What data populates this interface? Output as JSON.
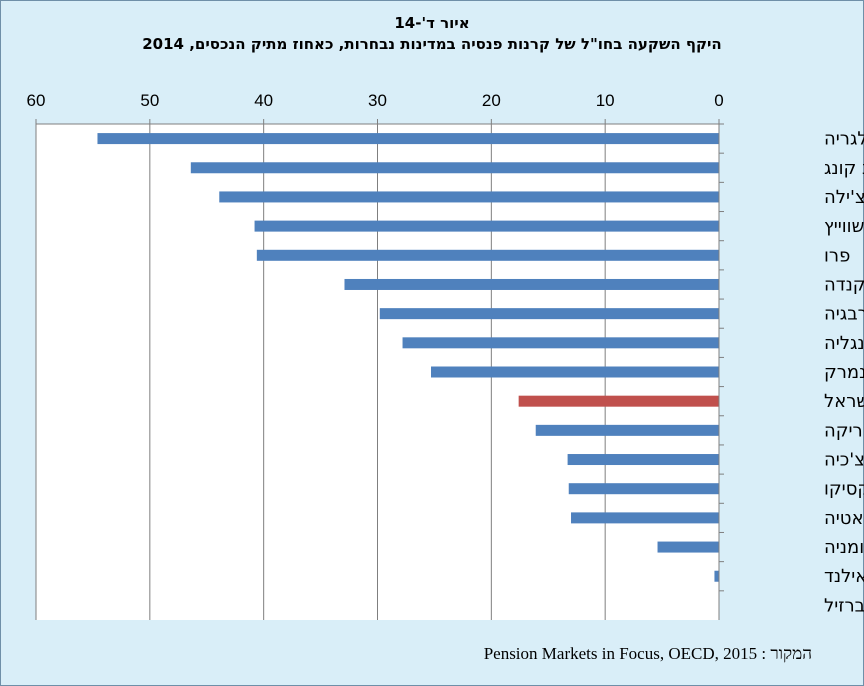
{
  "chart_data": {
    "type": "bar",
    "orientation": "horizontal",
    "title": "איור ד'-14",
    "subtitle": "היקף השקעה בחו\"ל של קרנות פנסיה במדינות נבחרות, כאחוז מתיק הנכסים, 2014",
    "xlim": [
      0,
      60
    ],
    "xticks": [
      "60",
      "50",
      "40",
      "30",
      "20",
      "10",
      "0"
    ],
    "x_axis_reversed": true,
    "x_axis_position": "top",
    "categories": [
      "בולגריה",
      "הונג קונג",
      "צ'ילה",
      "שווייץ",
      "פרו",
      "קנדה",
      "נורבגיה",
      "אנגליה",
      "דנמרק",
      "ישראל",
      "דרום אפריקה",
      "צ'כיה",
      "מקסיקו",
      "קרואטיה",
      "רומניה",
      "תאילנד",
      "ברזיל"
    ],
    "values": [
      54.6,
      46.4,
      43.9,
      40.8,
      40.6,
      32.9,
      29.8,
      27.8,
      25.3,
      17.6,
      16.1,
      13.3,
      13.2,
      13.0,
      5.4,
      0.4,
      0
    ],
    "colors": {
      "bar": "#4f81bd",
      "highlight": "#c0504d",
      "highlight_category": "ישראל"
    },
    "grid": true,
    "legend": "none"
  },
  "source": "המקור : Pension Markets in Focus, OECD, 2015"
}
